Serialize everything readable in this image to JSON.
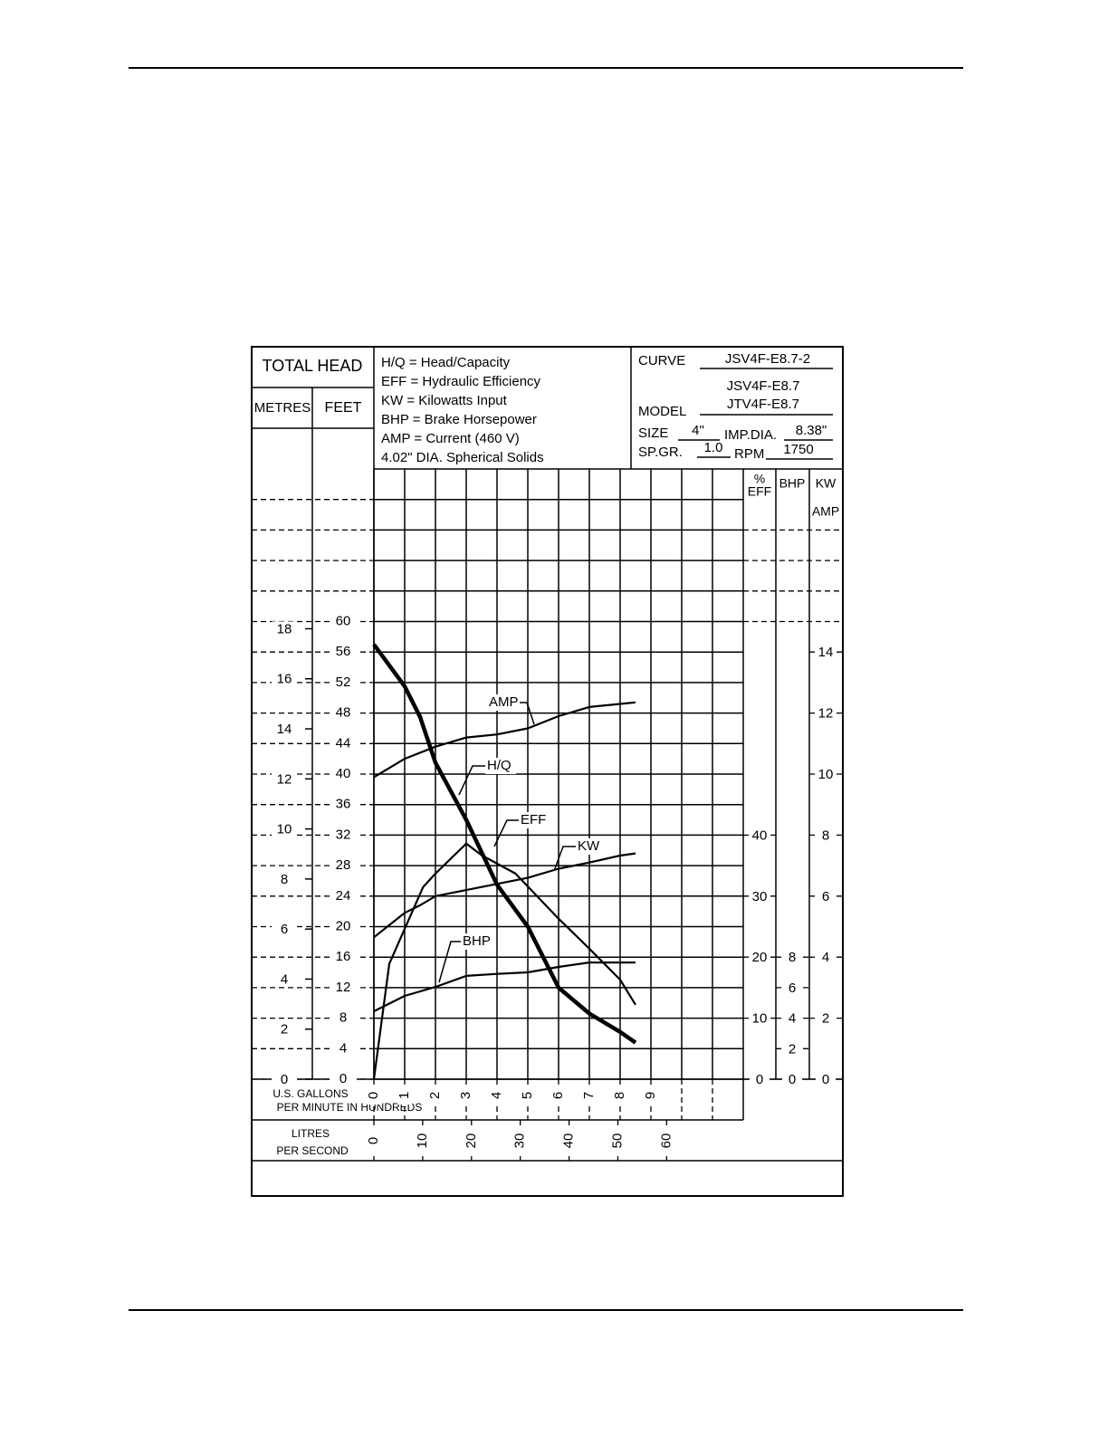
{
  "chart_data": {
    "type": "line",
    "title": "TOTAL HEAD",
    "legend": [
      "H/Q = Head/Capacity",
      "EFF = Hydraulic Efficiency",
      "KW  = Kilowatts Input",
      "BHP = Brake Horsepower",
      "AMP = Current (460 V)",
      "4.02\" DIA. Spherical Solids"
    ],
    "info": {
      "curve_label": "CURVE",
      "curve": "JSV4F-E8.7-2",
      "model_label": "MODEL",
      "models": [
        "JSV4F-E8.7",
        "JTV4F-E8.7"
      ],
      "size_label": "SIZE",
      "size": "4\"",
      "imp_dia_label": "IMP.DIA.",
      "imp_dia": "8.38\"",
      "sp_gr_label": "SP.GR.",
      "sp_gr": "1.0",
      "rpm_label": "RPM",
      "rpm": "1750"
    },
    "x_label": [
      "U.S. GALLONS",
      "PER MINUTE IN HUNDREDS"
    ],
    "xlim": [
      0,
      12
    ],
    "xticks": [
      0,
      1,
      2,
      3,
      4,
      5,
      6,
      7,
      8,
      9
    ],
    "x2_label": [
      "LITRES",
      "PER SECOND"
    ],
    "x2lim": [
      0,
      75.7
    ],
    "x2ticks": [
      0,
      10,
      20,
      30,
      40,
      50,
      60
    ],
    "y_label": "FEET",
    "ylim": [
      0,
      80
    ],
    "yticks": [
      0,
      4,
      8,
      12,
      16,
      20,
      24,
      28,
      32,
      36,
      40,
      44,
      48,
      52,
      56,
      60
    ],
    "metres": {
      "label": "METRES",
      "lim": [
        0,
        24.384
      ],
      "ticks": [
        0,
        2,
        4,
        6,
        8,
        10,
        12,
        14,
        16,
        18
      ]
    },
    "eff_axis": {
      "label": [
        "%",
        "EFF"
      ],
      "lim": [
        0,
        100
      ],
      "ticks": [
        0,
        10,
        20,
        30,
        40
      ]
    },
    "bhp_axis": {
      "label": "BHP",
      "lim": [
        0,
        40
      ],
      "ticks": [
        0,
        2,
        4,
        6,
        8
      ]
    },
    "kw_axis": {
      "label": [
        "KW",
        "AMP"
      ],
      "lim": [
        0,
        20
      ],
      "ticks": [
        0,
        2,
        4,
        6,
        8,
        10,
        12,
        14
      ]
    },
    "grid": true,
    "series": [
      {
        "name": "H/Q",
        "color": "#000000",
        "axis": "y",
        "x": [
          0,
          1,
          1.5,
          2,
          3,
          4,
          5,
          6,
          7,
          8,
          8.5
        ],
        "values": [
          57,
          51.5,
          47.5,
          41.5,
          34,
          25.5,
          20,
          12,
          8.6,
          6.2,
          4.8
        ]
      },
      {
        "name": "AMP",
        "color": "#000000",
        "axis": "kw",
        "x": [
          0,
          1,
          2,
          3,
          4,
          5,
          6,
          7,
          8,
          8.5
        ],
        "values": [
          9.9,
          10.5,
          10.9,
          11.2,
          11.3,
          11.5,
          11.9,
          12.2,
          12.3,
          12.35
        ]
      },
      {
        "name": "KW",
        "color": "#000000",
        "axis": "kw",
        "x": [
          0,
          1,
          1.5,
          2,
          3,
          4,
          5,
          6,
          7,
          8,
          8.5
        ],
        "values": [
          4.65,
          5.45,
          5.7,
          6.0,
          6.2,
          6.4,
          6.6,
          6.9,
          7.1,
          7.33,
          7.4
        ]
      },
      {
        "name": "EFF",
        "color": "#000000",
        "axis": "eff",
        "x": [
          0,
          0.5,
          1.6,
          2,
          3,
          3.5,
          4.6,
          6,
          7,
          8,
          8.5
        ],
        "values": [
          0,
          18.9,
          31.5,
          33.7,
          38.6,
          36.7,
          33.7,
          26.3,
          21.4,
          16.3,
          12.2
        ]
      },
      {
        "name": "BHP",
        "color": "#000000",
        "axis": "bhp",
        "x": [
          0,
          1,
          2,
          3,
          4,
          5,
          6,
          7,
          8,
          8.5
        ],
        "values": [
          4.45,
          5.46,
          6.05,
          6.77,
          6.9,
          7.0,
          7.36,
          7.65,
          7.65,
          7.65
        ]
      }
    ]
  }
}
